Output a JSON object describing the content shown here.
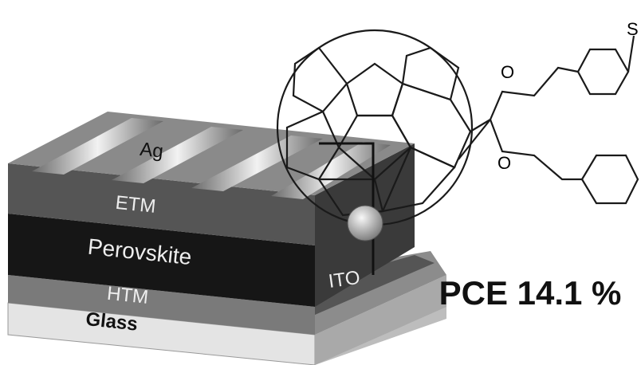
{
  "labels": {
    "ag": "Ag",
    "etm": "ETM",
    "perovskite": "Perovskite",
    "htm": "HTM",
    "glass": "Glass",
    "ito": "ITO"
  },
  "molecule": {
    "oxygen_top": "O",
    "oxygen_bottom": "O",
    "sulfur": "S"
  },
  "pce": "PCE 14.1 %"
}
